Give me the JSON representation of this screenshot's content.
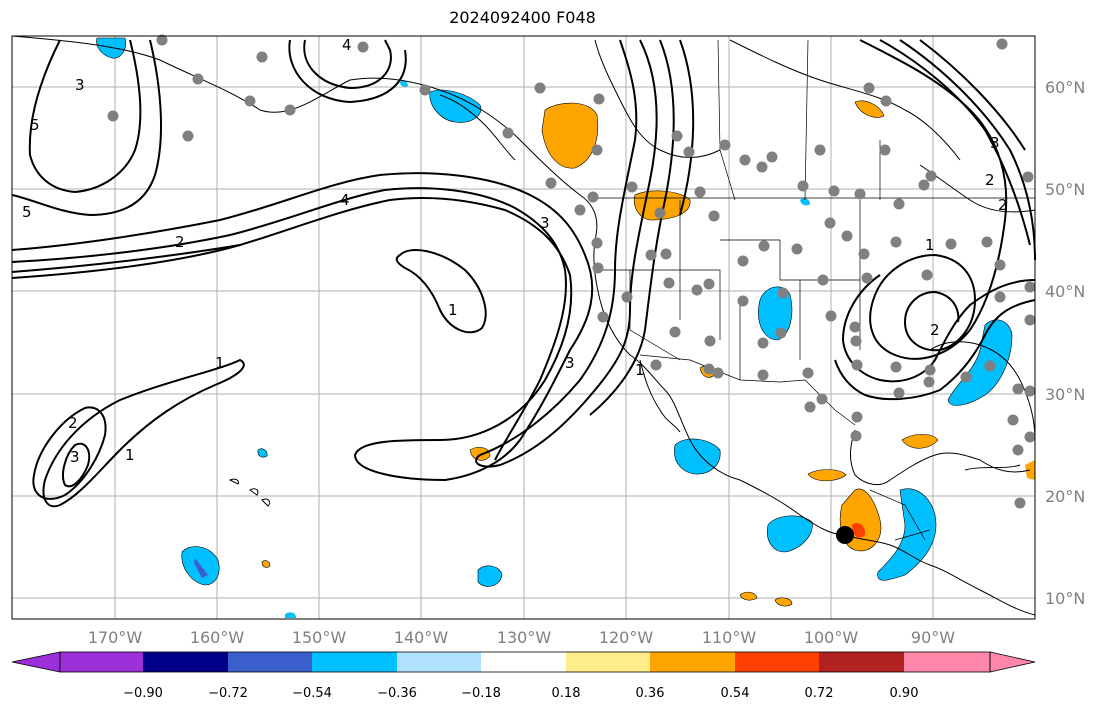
{
  "title": "2024092400 F048",
  "map": {
    "lat_labels": [
      "60°N",
      "50°N",
      "40°N",
      "30°N",
      "20°N",
      "10°N"
    ],
    "lon_labels": [
      "170°W",
      "160°W",
      "150°W",
      "140°W",
      "130°W",
      "120°W",
      "110°W",
      "100°W",
      "90°W"
    ],
    "contour_labels": [
      "5",
      "3",
      "4",
      "3",
      "5",
      "2",
      "4",
      "3",
      "1",
      "3",
      "1",
      "1",
      "2",
      "3",
      "1",
      "2",
      "1",
      "2",
      "2"
    ],
    "colors": {
      "grid": "#b0b0b0",
      "station_dot": "#808080",
      "marker": "#000000"
    }
  },
  "colorbar": {
    "tick_labels": [
      "−0.90",
      "−0.72",
      "−0.54",
      "−0.36",
      "−0.18",
      "0.18",
      "0.36",
      "0.54",
      "0.72",
      "0.90"
    ],
    "colors": [
      "#9b30d9",
      "#000088",
      "#3a5fcd",
      "#00bfff",
      "#b0e2ff",
      "#ffffff",
      "#ffec8b",
      "#ffa500",
      "#ff4000",
      "#b22222",
      "#ff88aa"
    ]
  }
}
